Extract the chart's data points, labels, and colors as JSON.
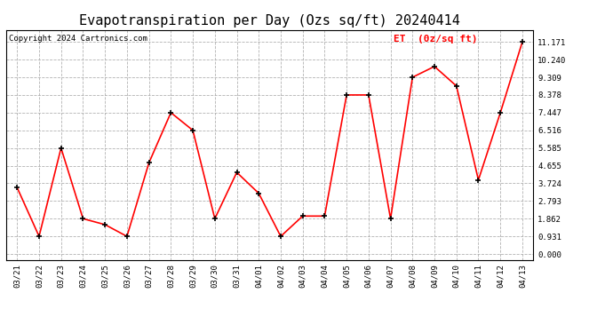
{
  "title": "Evapotranspiration per Day (Ozs sq/ft) 20240414",
  "copyright": "Copyright 2024 Cartronics.com",
  "legend_label": "ET  (0z/sq ft)",
  "dates": [
    "03/21",
    "03/22",
    "03/23",
    "03/24",
    "03/25",
    "03/26",
    "03/27",
    "03/28",
    "03/29",
    "03/30",
    "03/31",
    "04/01",
    "04/02",
    "04/03",
    "04/04",
    "04/05",
    "04/06",
    "04/07",
    "04/08",
    "04/09",
    "04/10",
    "04/11",
    "04/12",
    "04/13"
  ],
  "values": [
    3.5,
    0.931,
    5.585,
    1.862,
    1.55,
    0.931,
    4.8,
    7.447,
    6.516,
    1.862,
    4.3,
    3.2,
    0.931,
    2.0,
    2.0,
    8.378,
    8.378,
    1.862,
    9.309,
    9.878,
    8.85,
    3.9,
    7.447,
    11.171
  ],
  "line_color": "red",
  "marker_color": "black",
  "background_color": "#ffffff",
  "grid_color": "#aaaaaa",
  "yticks": [
    0.0,
    0.931,
    1.862,
    2.793,
    3.724,
    4.655,
    5.585,
    6.516,
    7.447,
    8.378,
    9.309,
    10.24,
    11.171
  ],
  "ylim": [
    -0.3,
    11.8
  ],
  "title_fontsize": 11,
  "copyright_fontsize": 6.5,
  "legend_fontsize": 8,
  "tick_fontsize": 6.5,
  "figsize": [
    6.9,
    3.75
  ],
  "dpi": 100
}
